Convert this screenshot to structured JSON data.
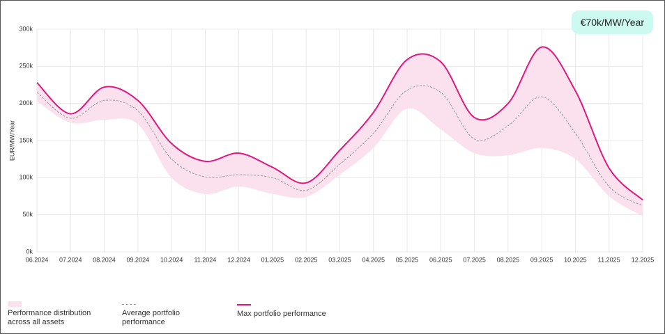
{
  "chart_data": {
    "type": "line",
    "badge": "€70k/MW/Year",
    "ylabel": "EUR/MW/Year",
    "categories": [
      "06.2024",
      "07.2024",
      "08.2024",
      "09.2024",
      "10.2024",
      "11.2024",
      "12.2024",
      "01.2025",
      "02.2025",
      "03.2025",
      "04.2025",
      "05.2025",
      "06.2025",
      "07.2025",
      "08.2025",
      "09.2025",
      "10.2025",
      "11.2025",
      "12.2025"
    ],
    "ylim": [
      0,
      300000
    ],
    "yticks": [
      {
        "value": 0,
        "label": "0k"
      },
      {
        "value": 50000,
        "label": "50k"
      },
      {
        "value": 100000,
        "label": "100k"
      },
      {
        "value": 150000,
        "label": "150k"
      },
      {
        "value": 200000,
        "label": "200k"
      },
      {
        "value": 250000,
        "label": "250k"
      },
      {
        "value": 300000,
        "label": "300k"
      }
    ],
    "grid": true,
    "series": [
      {
        "name": "Performance distribution across all assets",
        "color": "#fbe1ee",
        "values": [
          203000,
          174000,
          178000,
          172000,
          100000,
          78000,
          88000,
          78000,
          74000,
          104000,
          140000,
          193000,
          165000,
          133000,
          130000,
          140000,
          125000,
          75000,
          48000
        ]
      },
      {
        "name": "Average portfolio performance",
        "color": "#9a9a9a",
        "values": [
          215000,
          180000,
          204000,
          190000,
          125000,
          101000,
          104000,
          100000,
          83000,
          118000,
          160000,
          218000,
          215000,
          152000,
          170000,
          209000,
          160000,
          88000,
          62000
        ]
      },
      {
        "name": "Max portfolio performance",
        "color": "#e0187c",
        "values": [
          228000,
          186000,
          222000,
          204000,
          146000,
          122000,
          133000,
          114000,
          93000,
          137000,
          188000,
          259000,
          256000,
          181000,
          200000,
          276000,
          217000,
          113000,
          70000
        ]
      }
    ]
  }
}
